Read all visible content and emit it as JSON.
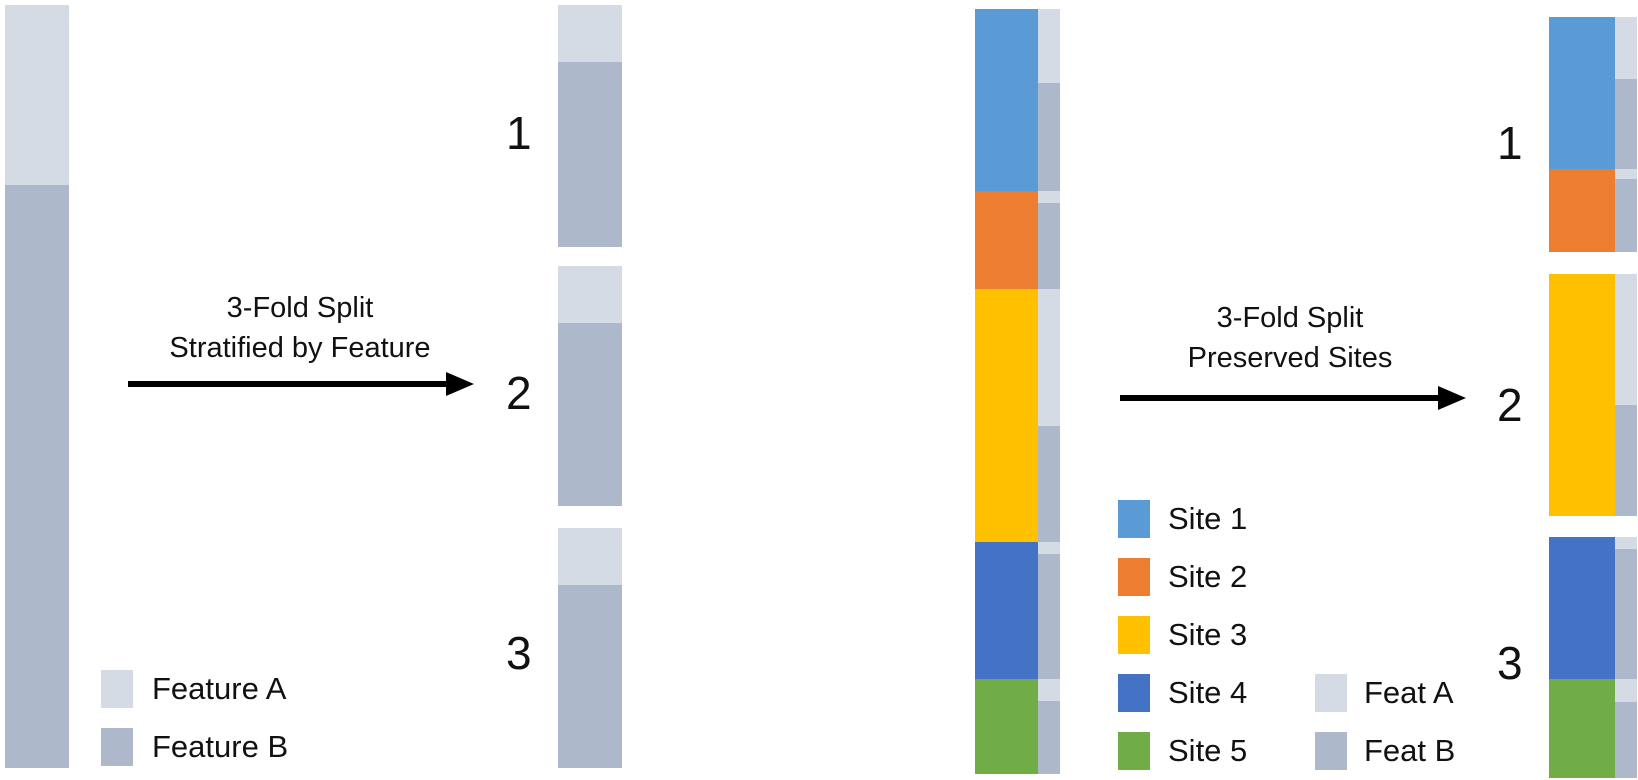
{
  "colors": {
    "feature_a": "#D5DBE5",
    "feature_b": "#ADB8CA",
    "site_1": "#5B9BD5",
    "site_2": "#ED7D31",
    "site_3": "#FFC000",
    "site_4": "#4472C4",
    "site_5": "#70AD47"
  },
  "left_panel": {
    "caption_line1": "3-Fold Split",
    "caption_line2": "Stratified by Feature",
    "folds": [
      "1",
      "2",
      "3"
    ],
    "legend": [
      {
        "label": "Feature A",
        "color": "#D5DBE5"
      },
      {
        "label": "Feature B",
        "color": "#ADB8CA"
      }
    ]
  },
  "right_panel": {
    "caption_line1": "3-Fold Split",
    "caption_line2": "Preserved Sites",
    "folds": [
      "1",
      "2",
      "3"
    ],
    "site_legend": [
      {
        "label": "Site 1",
        "color": "#5B9BD5"
      },
      {
        "label": "Site 2",
        "color": "#ED7D31"
      },
      {
        "label": "Site 3",
        "color": "#FFC000"
      },
      {
        "label": "Site 4",
        "color": "#4472C4"
      },
      {
        "label": "Site 5",
        "color": "#70AD47"
      }
    ],
    "feature_legend": [
      {
        "label": "Feat A",
        "color": "#D5DBE5"
      },
      {
        "label": "Feat B",
        "color": "#ADB8CA"
      }
    ]
  }
}
